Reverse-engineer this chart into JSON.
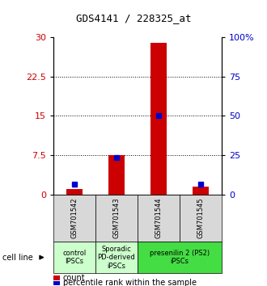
{
  "title": "GDS4141 / 228325_at",
  "samples": [
    "GSM701542",
    "GSM701543",
    "GSM701544",
    "GSM701545"
  ],
  "counts": [
    1.0,
    7.5,
    29.0,
    1.5
  ],
  "percentile_ranks": [
    2.0,
    7.0,
    15.0,
    2.0
  ],
  "ylim_left": [
    0,
    30
  ],
  "ylim_right": [
    0,
    100
  ],
  "yticks_left": [
    0,
    7.5,
    15,
    22.5,
    30
  ],
  "yticks_right": [
    0,
    25,
    50,
    75,
    100
  ],
  "ytick_labels_right": [
    "0",
    "25",
    "50",
    "75",
    "100%"
  ],
  "bar_color": "#cc0000",
  "dot_color": "#0000cc",
  "groups": [
    {
      "label": "control\nIPSCs",
      "start": 0,
      "end": 0,
      "color": "#ccffcc"
    },
    {
      "label": "Sporadic\nPD-derived\niPSCs",
      "start": 1,
      "end": 1,
      "color": "#ccffcc"
    },
    {
      "label": "presenilin 2 (PS2)\niPSCs",
      "start": 2,
      "end": 3,
      "color": "#44dd44"
    }
  ],
  "cell_line_label": "cell line",
  "legend_count": "count",
  "legend_pct": "percentile rank within the sample",
  "bar_width": 0.4,
  "tick_label_color_left": "#cc0000",
  "tick_label_color_right": "#0000cc",
  "sample_box_color": "#d8d8d8",
  "title_fontsize": 9,
  "axis_fontsize": 8,
  "label_fontsize": 7
}
